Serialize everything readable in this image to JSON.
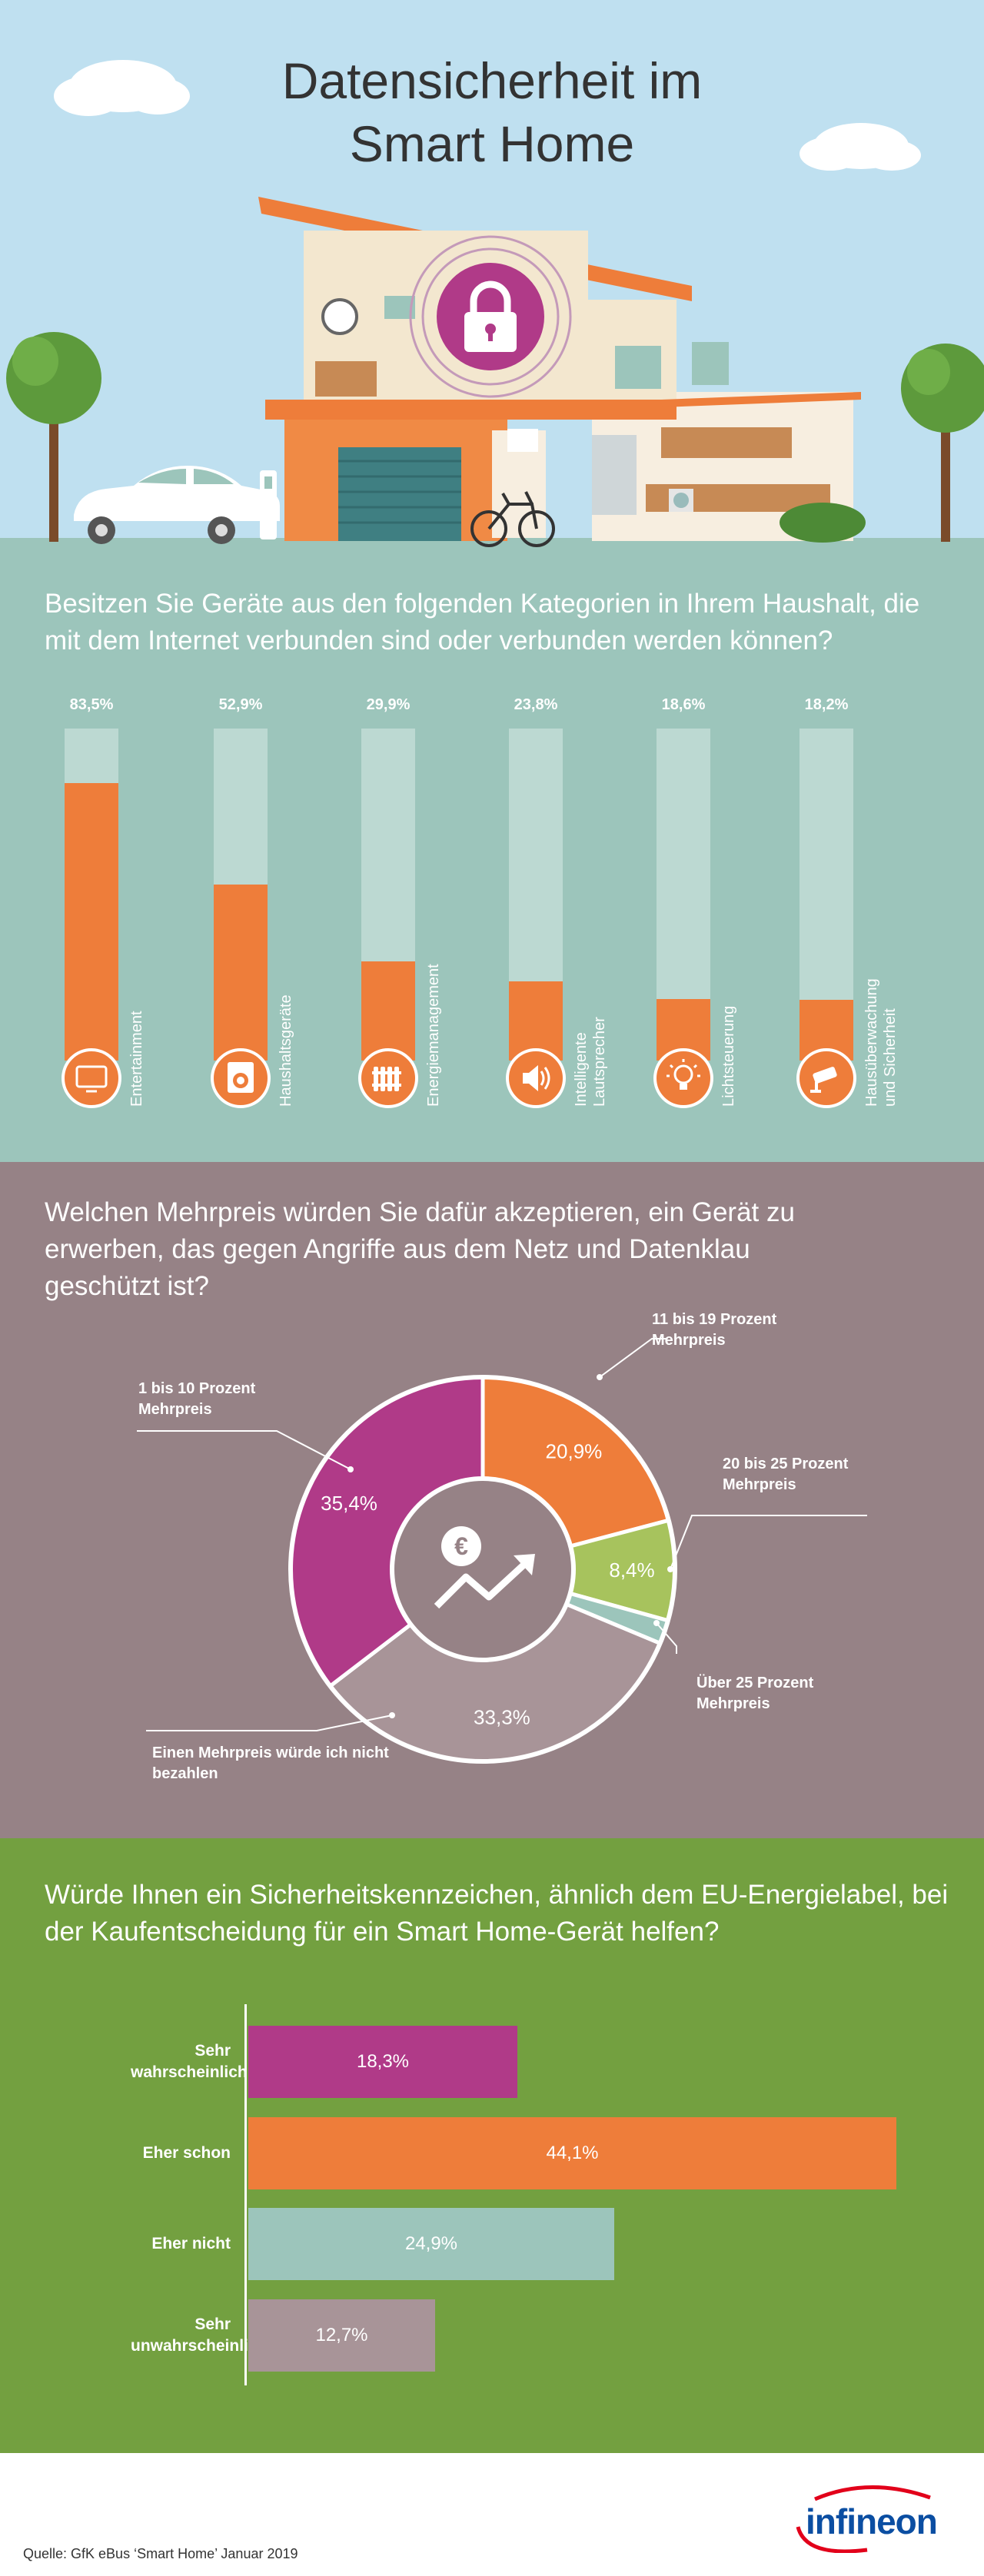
{
  "hero": {
    "title_line1": "Datensicherheit im",
    "title_line2": "Smart Home"
  },
  "colors": {
    "sky": "#bfe0f0",
    "orange": "#ee7d3a",
    "purple": "#b03a88",
    "green": "#a7c35d",
    "teal": "#9cc5bb",
    "mauve": "#a89498",
    "section1_bg": "#9cc5bb",
    "section2_bg": "#968286",
    "section3_bg": "#73a040"
  },
  "section1": {
    "question": "Besitzen Sie Geräte aus den folgenden Kategorien in Ihrem Haushalt, die mit dem Internet verbunden sind oder verbunden werden können?"
  },
  "section2": {
    "question": "Welchen Mehrpreis würden Sie dafür akzeptieren, ein Gerät zu erwerben, das gegen Angriffe aus dem Netz und Datenklau geschützt ist?"
  },
  "section3": {
    "question": "Würde Ihnen ein Sicherheitskennzeichen, ähnlich dem EU-Energielabel, bei der Kaufentscheidung für ein Smart Home-Gerät helfen?"
  },
  "chart_data": [
    {
      "type": "bar",
      "categories": [
        "Entertainment",
        "Haushaltsgeräte",
        "Energiemanagement",
        "Intelligente Lautsprecher",
        "Lichtsteuerung",
        "Hausüberwachung und Sicherheit"
      ],
      "values": [
        83.5,
        52.9,
        29.9,
        23.8,
        18.6,
        18.2
      ],
      "value_labels": [
        "83,5%",
        "52,9%",
        "29,9%",
        "23,8%",
        "18,6%",
        "18,2%"
      ],
      "icons": [
        "tv-icon",
        "washing-machine-icon",
        "radiator-icon",
        "speaker-icon",
        "lightbulb-icon",
        "security-camera-icon"
      ],
      "ylim": [
        0,
        100
      ]
    },
    {
      "type": "pie",
      "labels": [
        "11 bis 19 Prozent Mehrpreis",
        "20 bis 25 Prozent Mehrpreis",
        "Über 25 Prozent Mehrpreis",
        "Einen Mehrpreis würde ich nicht bezahlen",
        "1 bis 10 Prozent Mehrpreis"
      ],
      "values": [
        20.9,
        8.4,
        2.0,
        33.3,
        35.4
      ],
      "value_labels": [
        "20,9%",
        "8,4%",
        "",
        "33,3%",
        "35,4%"
      ],
      "colors": [
        "#ee7d3a",
        "#a7c35d",
        "#9cc5bb",
        "#a89498",
        "#b03a88"
      ],
      "center_icon": "euro-growth-icon"
    },
    {
      "type": "bar",
      "orientation": "horizontal",
      "categories": [
        "Sehr wahrscheinlich",
        "Eher schon",
        "Eher nicht",
        "Sehr unwahrscheinlich"
      ],
      "values": [
        18.3,
        44.1,
        24.9,
        12.7
      ],
      "value_labels": [
        "18,3%",
        "44,1%",
        "24,9%",
        "12,7%"
      ],
      "colors": [
        "#b03a88",
        "#ee7d3a",
        "#9cc5bb",
        "#a89498"
      ]
    }
  ],
  "footer": {
    "source": "Quelle: GfK eBus ‘Smart Home’ Januar 2019",
    "logo_text": "infineon"
  }
}
